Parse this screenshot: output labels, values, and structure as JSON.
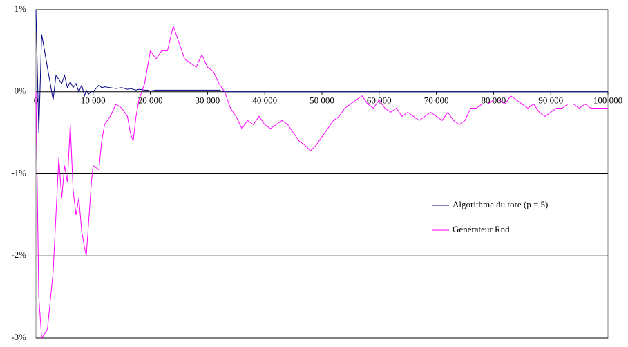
{
  "chart_data": {
    "type": "line",
    "x": [
      0,
      500,
      1000,
      2000,
      3000,
      3500,
      4000,
      4500,
      5000,
      5500,
      6000,
      6500,
      7000,
      7500,
      8000,
      8500,
      8800,
      9200,
      9700,
      10000,
      11000,
      11500,
      12000,
      13000,
      14000,
      15000,
      16000,
      16500,
      17000,
      17500,
      18000,
      19000,
      19500,
      20000,
      21000,
      22000,
      23000,
      24000,
      25000,
      26000,
      27000,
      28000,
      29000,
      30000,
      31000,
      32000,
      33000,
      34000,
      35000,
      36000,
      37000,
      38000,
      39000,
      40000,
      41000,
      42000,
      43000,
      44000,
      45000,
      46000,
      47000,
      48000,
      49000,
      50000,
      51000,
      52000,
      53000,
      54000,
      55000,
      56000,
      57000,
      58000,
      59000,
      60000,
      61000,
      62000,
      63000,
      64000,
      65000,
      66000,
      67000,
      68000,
      69000,
      70000,
      71000,
      72000,
      73000,
      74000,
      75000,
      76000,
      77000,
      78000,
      79000,
      80000,
      81000,
      82000,
      83000,
      84000,
      85000,
      86000,
      87000,
      88000,
      89000,
      90000,
      91000,
      92000,
      93000,
      94000,
      95000,
      96000,
      97000,
      98000,
      99000,
      100000
    ],
    "series": [
      {
        "name": "Algorithme du tore (p = 5)",
        "color": "#000080",
        "values": [
          1,
          -0.5,
          0.7,
          0.3,
          -0.1,
          0.2,
          0.15,
          0.1,
          0.2,
          0.05,
          0.12,
          0.05,
          0.1,
          0,
          0.08,
          -0.05,
          0.02,
          -0.03,
          0.01,
          0,
          0.08,
          0.05,
          0.06,
          0.05,
          0.04,
          0.05,
          0.03,
          0.04,
          0.03,
          0.02,
          0.03,
          0.02,
          0.02,
          0.01,
          0.02,
          0.02,
          0.02,
          0.02,
          0.02,
          0.02,
          0.02,
          0.02,
          0.02,
          0.02,
          0.02,
          0.02,
          0,
          0,
          0,
          0,
          0,
          0,
          0,
          0,
          0,
          0,
          0,
          0,
          0,
          0,
          0,
          0,
          0,
          0,
          0,
          0,
          0,
          0,
          0,
          0,
          0,
          0,
          0,
          0,
          0,
          0,
          0,
          0,
          0,
          0,
          0,
          0,
          0,
          0,
          0,
          0,
          0,
          0,
          0,
          0,
          0,
          0,
          0,
          0,
          0,
          0,
          0,
          0,
          0,
          0,
          0,
          0,
          0,
          0,
          0,
          0,
          0,
          0,
          0,
          0,
          0,
          0,
          0,
          0
        ]
      },
      {
        "name": "Générateur Rnd",
        "color": "#ff00ff",
        "values": [
          0,
          -2.5,
          -3,
          -2.9,
          -2.2,
          -1.5,
          -0.8,
          -1.3,
          -0.9,
          -1.1,
          -0.4,
          -1.2,
          -1.5,
          -1.3,
          -1.7,
          -1.9,
          -2.0,
          -1.6,
          -1.1,
          -0.9,
          -0.95,
          -0.6,
          -0.4,
          -0.3,
          -0.15,
          -0.2,
          -0.3,
          -0.5,
          -0.6,
          -0.3,
          -0.1,
          0.1,
          0.3,
          0.5,
          0.4,
          0.5,
          0.5,
          0.8,
          0.6,
          0.4,
          0.35,
          0.3,
          0.45,
          0.3,
          0.25,
          0.1,
          0,
          -0.2,
          -0.3,
          -0.45,
          -0.35,
          -0.4,
          -0.3,
          -0.4,
          -0.45,
          -0.4,
          -0.35,
          -0.4,
          -0.5,
          -0.6,
          -0.65,
          -0.72,
          -0.65,
          -0.55,
          -0.45,
          -0.35,
          -0.3,
          -0.2,
          -0.15,
          -0.1,
          -0.05,
          -0.15,
          -0.2,
          -0.1,
          -0.2,
          -0.25,
          -0.2,
          -0.3,
          -0.25,
          -0.3,
          -0.35,
          -0.3,
          -0.25,
          -0.3,
          -0.35,
          -0.25,
          -0.35,
          -0.4,
          -0.35,
          -0.2,
          -0.2,
          -0.15,
          -0.15,
          -0.1,
          -0.1,
          -0.15,
          -0.05,
          -0.1,
          -0.15,
          -0.2,
          -0.15,
          -0.25,
          -0.3,
          -0.25,
          -0.2,
          -0.2,
          -0.15,
          -0.15,
          -0.2,
          -0.15,
          -0.2,
          -0.2,
          -0.2,
          -0.2
        ]
      }
    ],
    "xlim": [
      0,
      100000
    ],
    "xticks": [
      0,
      {
        "value": 10000,
        "label": "10 000"
      },
      {
        "value": 20000,
        "label": "20 000"
      },
      {
        "value": 30000,
        "label": "30 000"
      },
      {
        "value": 40000,
        "label": "40 000"
      },
      {
        "value": 50000,
        "label": "50 000"
      },
      {
        "value": 60000,
        "label": "60 000"
      },
      {
        "value": 70000,
        "label": "70 000"
      },
      {
        "value": 80000,
        "label": "80 000"
      },
      {
        "value": 90000,
        "label": "90 000"
      },
      {
        "value": 100000,
        "label": "100 000"
      }
    ],
    "ylim": [
      -3,
      1
    ],
    "yticks": [
      {
        "value": -3,
        "label": "-3%"
      },
      {
        "value": -2,
        "label": "-2%"
      },
      {
        "value": -1,
        "label": "-1%"
      },
      {
        "value": 0,
        "label": "0%"
      },
      {
        "value": 1,
        "label": "1%"
      }
    ],
    "grid": true
  }
}
